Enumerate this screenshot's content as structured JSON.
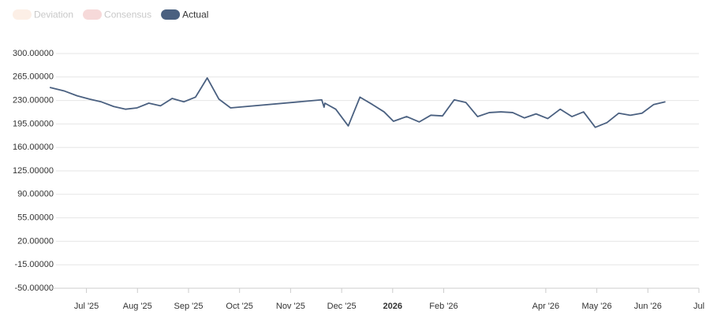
{
  "chart_data": {
    "type": "line",
    "legend": [
      {
        "name": "Deviation",
        "color": "#fcefe6",
        "hidden": true
      },
      {
        "name": "Consensus",
        "color": "#f6d9d9",
        "hidden": true
      }
    ],
    "x": [
      2025.4402,
      2025.4466,
      2025.4644,
      2025.4847,
      2025.5051,
      2025.5242,
      2025.5445,
      2025.5636,
      2025.5827,
      2025.6018,
      2025.6209,
      2025.6399,
      2025.659,
      2025.6781,
      2025.6972,
      2025.7163,
      2025.7354,
      2025.8842,
      2025.888,
      2025.8893,
      2025.9071,
      2025.9275,
      2025.9466,
      2025.9669,
      2025.986,
      2026.0013,
      2026.0229,
      2026.0433,
      2026.0623,
      2026.0814,
      2026.1005,
      2026.1196,
      2026.1387,
      2026.1578,
      2026.1768,
      2026.1959,
      2026.215,
      2026.2341,
      2026.2532,
      2026.2735,
      2026.2926,
      2026.3117,
      2026.3308,
      2026.3499,
      2026.369,
      2026.388,
      2026.4071,
      2026.4262,
      2026.4453
    ],
    "series": [
      {
        "name": "Actual",
        "color": "#4a6080",
        "values": [
          249.5,
          248,
          244,
          237,
          232,
          228,
          221,
          217,
          219,
          226,
          222,
          233,
          228,
          235,
          263.6,
          232,
          219,
          231,
          220,
          226,
          217,
          192,
          235,
          224,
          213,
          199,
          206,
          198,
          208,
          207,
          231,
          227,
          206,
          212,
          213,
          212,
          204,
          210,
          203,
          217,
          206,
          213,
          190,
          197,
          211,
          208,
          211,
          224,
          228
        ]
      }
    ],
    "xlim": [
      2025.44,
      2026.5
    ],
    "xticks": [
      {
        "value": 2025.5,
        "label": "Jul '25"
      },
      {
        "value": 2025.5833,
        "label": "Aug '25"
      },
      {
        "value": 2025.6667,
        "label": "Sep '25"
      },
      {
        "value": 2025.75,
        "label": "Oct '25"
      },
      {
        "value": 2025.8333,
        "label": "Nov '25"
      },
      {
        "value": 2025.9167,
        "label": "Dec '25"
      },
      {
        "value": 2026,
        "label": "2026"
      },
      {
        "value": 2026.0833,
        "label": "Feb '26"
      },
      {
        "value": 2026.25,
        "label": "Apr '26"
      },
      {
        "value": 2026.3333,
        "label": "May '26"
      },
      {
        "value": 2026.4167,
        "label": "Jun '26"
      },
      {
        "value": 2026.5,
        "label": "Jul"
      }
    ],
    "ylim": [
      -50,
      300
    ],
    "yticks": [
      {
        "value": -50,
        "label": "-50.00000"
      },
      {
        "value": -15,
        "label": "-15.00000"
      },
      {
        "value": 20,
        "label": "20.00000"
      },
      {
        "value": 55,
        "label": "55.00000"
      },
      {
        "value": 90,
        "label": "90.00000"
      },
      {
        "value": 125,
        "label": "125.00000"
      },
      {
        "value": 160,
        "label": "160.00000"
      },
      {
        "value": 195,
        "label": "195.00000"
      },
      {
        "value": 230,
        "label": "230.00000"
      },
      {
        "value": 265,
        "label": "265.00000"
      },
      {
        "value": 300,
        "label": "300.00000"
      }
    ],
    "grid": true
  }
}
